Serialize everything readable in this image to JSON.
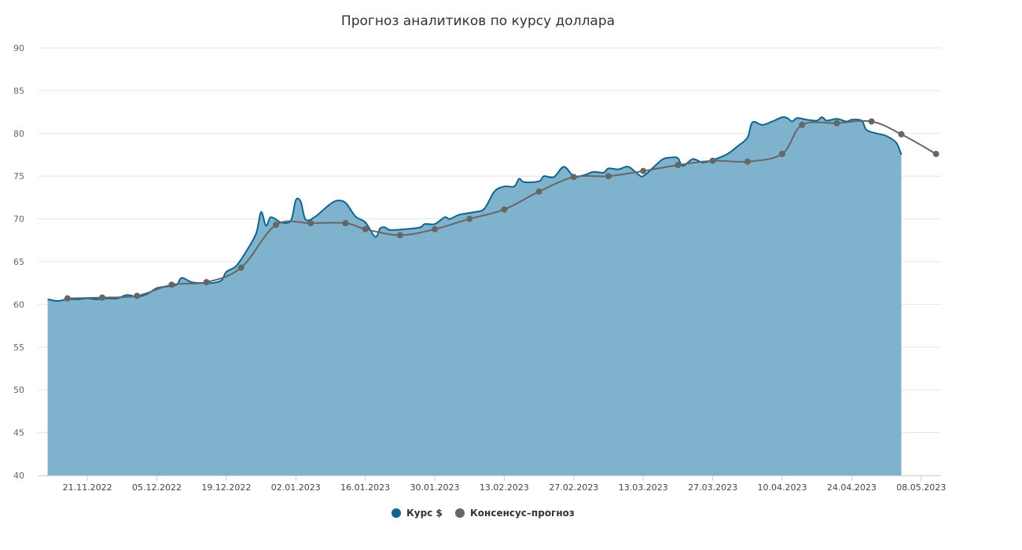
{
  "chart_data": {
    "type": "area",
    "title": "Прогноз аналитиков по курсу доллара",
    "xlabel": "",
    "ylabel": "",
    "ylim": [
      40,
      90
    ],
    "yticks": [
      40,
      45,
      50,
      55,
      60,
      65,
      70,
      75,
      80,
      85,
      90
    ],
    "xlim": [
      "2022-11-11",
      "2023-05-12"
    ],
    "xtick_labels": [
      "21.11.2022",
      "05.12.2022",
      "19.12.2022",
      "02.01.2023",
      "16.01.2023",
      "30.01.2023",
      "13.02.2023",
      "27.02.2023",
      "13.03.2023",
      "27.03.2023",
      "10.04.2023",
      "24.04.2023",
      "08.05.2023"
    ],
    "grid": true,
    "legend_position": "bottom",
    "series": [
      {
        "name": "Курс $",
        "type": "area",
        "color": "#0e6590",
        "fill": "#7fb2cc",
        "points": [
          [
            "2022-11-13",
            60.6
          ],
          [
            "2022-11-15",
            60.4
          ],
          [
            "2022-11-17",
            60.6
          ],
          [
            "2022-11-19",
            60.6
          ],
          [
            "2022-11-21",
            60.7
          ],
          [
            "2022-11-23",
            60.6
          ],
          [
            "2022-11-25",
            60.7
          ],
          [
            "2022-11-27",
            60.7
          ],
          [
            "2022-11-29",
            61.1
          ],
          [
            "2022-12-01",
            60.9
          ],
          [
            "2022-12-03",
            61.2
          ],
          [
            "2022-12-05",
            61.9
          ],
          [
            "2022-12-07",
            62.1
          ],
          [
            "2022-12-09",
            62.3
          ],
          [
            "2022-12-10",
            63.1
          ],
          [
            "2022-12-12",
            62.6
          ],
          [
            "2022-12-14",
            62.5
          ],
          [
            "2022-12-16",
            62.5
          ],
          [
            "2022-12-18",
            62.8
          ],
          [
            "2022-12-19",
            63.8
          ],
          [
            "2022-12-21",
            64.5
          ],
          [
            "2022-12-23",
            66.2
          ],
          [
            "2022-12-25",
            68.3
          ],
          [
            "2022-12-26",
            70.8
          ],
          [
            "2022-12-27",
            69.2
          ],
          [
            "2022-12-28",
            70.2
          ],
          [
            "2022-12-30",
            69.6
          ],
          [
            "2023-01-01",
            69.8
          ],
          [
            "2023-01-02",
            72.2
          ],
          [
            "2023-01-03",
            72.0
          ],
          [
            "2023-01-04",
            69.9
          ],
          [
            "2023-01-06",
            70.3
          ],
          [
            "2023-01-08",
            71.3
          ],
          [
            "2023-01-10",
            72.1
          ],
          [
            "2023-01-12",
            71.9
          ],
          [
            "2023-01-14",
            70.3
          ],
          [
            "2023-01-16",
            69.6
          ],
          [
            "2023-01-18",
            67.9
          ],
          [
            "2023-01-19",
            68.9
          ],
          [
            "2023-01-20",
            69.0
          ],
          [
            "2023-01-21",
            68.7
          ],
          [
            "2023-01-24",
            68.8
          ],
          [
            "2023-01-27",
            69.0
          ],
          [
            "2023-01-28",
            69.4
          ],
          [
            "2023-01-30",
            69.4
          ],
          [
            "2023-02-01",
            70.2
          ],
          [
            "2023-02-02",
            70.0
          ],
          [
            "2023-02-04",
            70.5
          ],
          [
            "2023-02-07",
            70.8
          ],
          [
            "2023-02-09",
            71.2
          ],
          [
            "2023-02-11",
            73.2
          ],
          [
            "2023-02-13",
            73.8
          ],
          [
            "2023-02-15",
            73.8
          ],
          [
            "2023-02-16",
            74.7
          ],
          [
            "2023-02-17",
            74.3
          ],
          [
            "2023-02-20",
            74.4
          ],
          [
            "2023-02-21",
            75.0
          ],
          [
            "2023-02-23",
            74.9
          ],
          [
            "2023-02-25",
            76.1
          ],
          [
            "2023-02-27",
            75.0
          ],
          [
            "2023-03-01",
            75.1
          ],
          [
            "2023-03-03",
            75.5
          ],
          [
            "2023-03-05",
            75.4
          ],
          [
            "2023-03-06",
            75.9
          ],
          [
            "2023-03-08",
            75.8
          ],
          [
            "2023-03-10",
            76.1
          ],
          [
            "2023-03-12",
            75.2
          ],
          [
            "2023-03-13",
            75.0
          ],
          [
            "2023-03-15",
            76.0
          ],
          [
            "2023-03-17",
            77.0
          ],
          [
            "2023-03-19",
            77.2
          ],
          [
            "2023-03-20",
            77.1
          ],
          [
            "2023-03-21",
            76.2
          ],
          [
            "2023-03-23",
            77.0
          ],
          [
            "2023-03-25",
            76.6
          ],
          [
            "2023-03-27",
            76.9
          ],
          [
            "2023-03-28",
            77.1
          ],
          [
            "2023-03-30",
            77.6
          ],
          [
            "2023-04-01",
            78.5
          ],
          [
            "2023-04-03",
            79.5
          ],
          [
            "2023-04-04",
            81.3
          ],
          [
            "2023-04-06",
            81.0
          ],
          [
            "2023-04-08",
            81.4
          ],
          [
            "2023-04-10",
            81.9
          ],
          [
            "2023-04-11",
            81.8
          ],
          [
            "2023-04-12",
            81.4
          ],
          [
            "2023-04-13",
            81.8
          ],
          [
            "2023-04-15",
            81.6
          ],
          [
            "2023-04-17",
            81.5
          ],
          [
            "2023-04-18",
            81.9
          ],
          [
            "2023-04-19",
            81.5
          ],
          [
            "2023-04-21",
            81.7
          ],
          [
            "2023-04-23",
            81.4
          ],
          [
            "2023-04-24",
            81.6
          ],
          [
            "2023-04-26",
            81.5
          ],
          [
            "2023-04-27",
            80.4
          ],
          [
            "2023-04-29",
            80.0
          ],
          [
            "2023-05-01",
            79.7
          ],
          [
            "2023-05-03",
            78.9
          ],
          [
            "2023-05-04",
            77.5
          ]
        ]
      },
      {
        "name": "Консенсус–прогноз",
        "type": "line",
        "color": "#666666",
        "points": [
          [
            "2022-11-17",
            60.7
          ],
          [
            "2022-11-24",
            60.8
          ],
          [
            "2022-12-01",
            61.0
          ],
          [
            "2022-12-08",
            62.3
          ],
          [
            "2022-12-15",
            62.6
          ],
          [
            "2022-12-22",
            64.3
          ],
          [
            "2022-12-29",
            69.3
          ],
          [
            "2023-01-05",
            69.5
          ],
          [
            "2023-01-12",
            69.5
          ],
          [
            "2023-01-16",
            68.8
          ],
          [
            "2023-01-23",
            68.1
          ],
          [
            "2023-01-30",
            68.8
          ],
          [
            "2023-02-06",
            70.0
          ],
          [
            "2023-02-13",
            71.1
          ],
          [
            "2023-02-20",
            73.2
          ],
          [
            "2023-02-27",
            74.9
          ],
          [
            "2023-03-06",
            75.0
          ],
          [
            "2023-03-13",
            75.6
          ],
          [
            "2023-03-20",
            76.3
          ],
          [
            "2023-03-27",
            76.8
          ],
          [
            "2023-04-03",
            76.7
          ],
          [
            "2023-04-10",
            77.6
          ],
          [
            "2023-04-14",
            81.0
          ],
          [
            "2023-04-21",
            81.2
          ],
          [
            "2023-04-28",
            81.4
          ],
          [
            "2023-05-04",
            79.9
          ],
          [
            "2023-05-11",
            77.6
          ]
        ]
      }
    ]
  }
}
